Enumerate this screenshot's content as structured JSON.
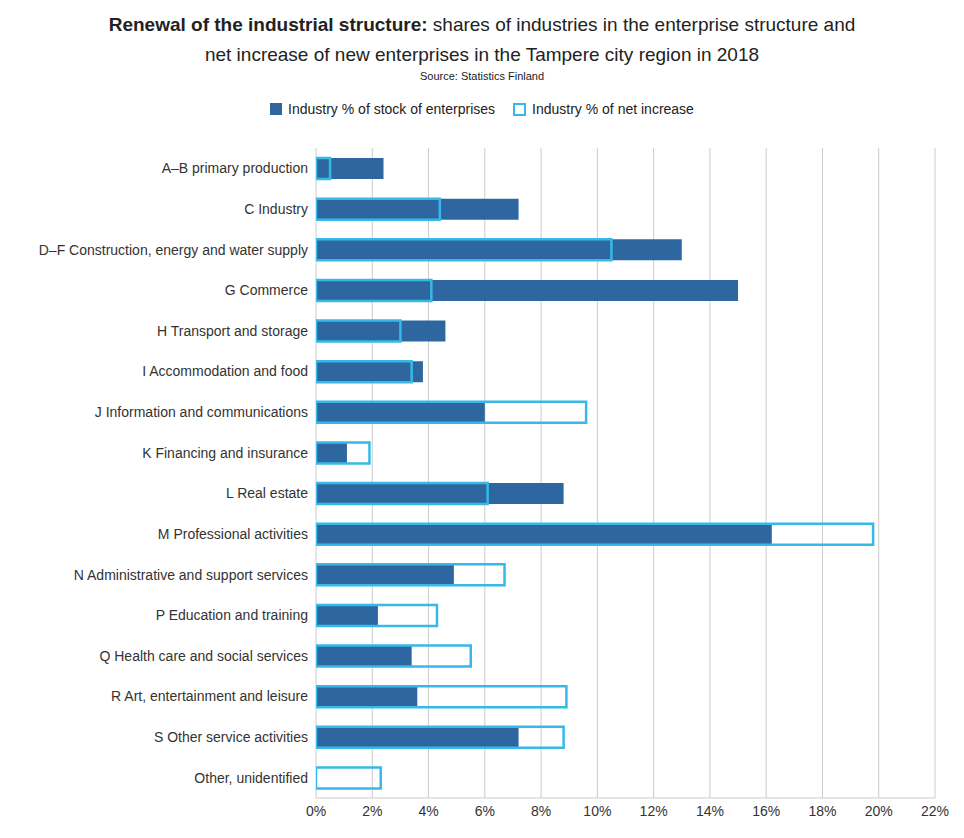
{
  "chart_data": {
    "type": "bar",
    "orientation": "horizontal",
    "title": "Renewal of the industrial structure: shares of industries in the enterprise structure and net increase of new enterprises in the Tampere city region in 2018",
    "annotations": [
      "Source: Statistics Finland"
    ],
    "legend": "top",
    "grid": true,
    "categories": [
      "A–B primary production",
      "C Industry",
      "D–F Construction, energy and water supply",
      "G Commerce",
      "H Transport and storage",
      "I Accommodation and food",
      "J Information and communications",
      "K Financing and insurance",
      "L Real estate",
      "M Professional activities",
      "N Administrative and support services",
      "P Education and training",
      "Q Health care and social services",
      "R Art, entertainment and leisure",
      "S Other service activities",
      "Other, unidentified"
    ],
    "series": [
      {
        "name": "Industry % of stock of enterprises",
        "color": "#2e67a0",
        "values": [
          2.4,
          7.2,
          13.0,
          15.0,
          4.6,
          3.8,
          6.0,
          1.1,
          8.8,
          16.2,
          4.9,
          2.2,
          3.4,
          3.6,
          7.2,
          0
        ]
      },
      {
        "name": "Industry % of net increase",
        "color": "#36b9e8",
        "values": [
          0.5,
          4.4,
          10.5,
          4.1,
          3.0,
          3.4,
          9.6,
          1.9,
          6.1,
          19.8,
          6.7,
          4.3,
          5.5,
          8.9,
          8.8,
          2.3
        ]
      }
    ],
    "xlim": [
      0,
      22
    ],
    "xticks": [
      {
        "value": 0,
        "label": "0%"
      },
      {
        "value": 2,
        "label": "2%"
      },
      {
        "value": 4,
        "label": "4%"
      },
      {
        "value": 6,
        "label": "6%"
      },
      {
        "value": 8,
        "label": "8%"
      },
      {
        "value": 10,
        "label": "10%"
      },
      {
        "value": 12,
        "label": "12%"
      },
      {
        "value": 14,
        "label": "14%"
      },
      {
        "value": 16,
        "label": "16%"
      },
      {
        "value": 18,
        "label": "18%"
      },
      {
        "value": 20,
        "label": "20%"
      },
      {
        "value": 22,
        "label": "22%"
      }
    ]
  }
}
